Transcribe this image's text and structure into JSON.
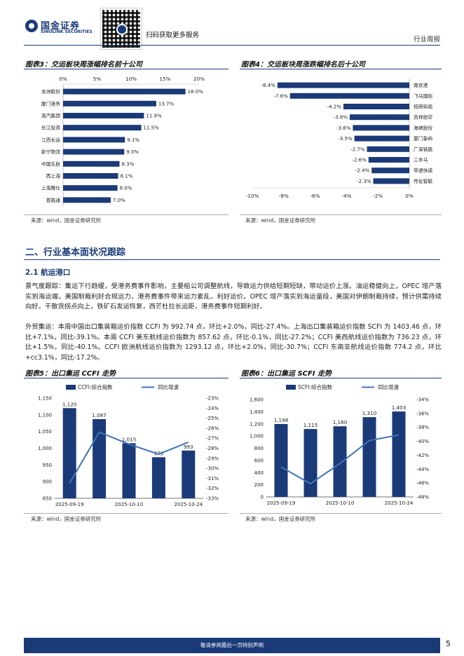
{
  "header": {
    "brand_cn": "国金证券",
    "brand_en": "SINOLINK SECURITIES",
    "qr_caption": "扫码获取更多服务",
    "doc_type": "行业周报"
  },
  "fig3": {
    "title": "图表3：交运板块周涨幅排名前十公司",
    "source": "来源：wind，国金证券研究所"
  },
  "fig4": {
    "title": "图表4：交运板块周涨跌幅排名后十公司",
    "source": "来源：wind，国金证券研究所"
  },
  "section": {
    "title": "二、行业基本面状况跟踪",
    "subtitle": "2.1 航运港口",
    "p1": "景气度跟踪：集运下行趋缓，受港务费事件影响，主要船公司调整航线，导致运力供给短期短缺，带动运价上涨。油运稳健向上，OPEC 增产落实到海运端，美国制裁利好合规运力，港务费事件带来运力紊乱，利好运价。OPEC 增产落实到海运量段，美国对伊朗制裁持续，预计供需持续向好。干散货拐点向上，铁矿石发运恢复，西芒杜拉长运距，港务费事件短期利好。",
    "p2": "外贸集运：本周中国出口集装箱运价指数 CCFI 为 992.74 点，环比+2.0%，同比-27.4%。上海出口集装箱运价指数 SCFI 为 1403.46 点，环比+7.1%，同比-39.1%。本周 CCFI 美东航线运价指数为 857.62 点，环比-0.1%，同比-27.2%；CCFI 美西航线运价指数为 736.23 点，环比+1.5%，同比-40.1%。CCFI 欧洲航线运价指数为 1293.12 点，环比+2.0%，同比-30.7%；CCFI 东南亚航线运价指数 774.2 点，环比+cc3.1%，同比-17.2%。"
  },
  "fig5": {
    "title": "图表5：出口集运 CCFI 走势",
    "source": "来源：wind，国金证券研究所"
  },
  "fig6": {
    "title": "图表6：出口集运 SCFI 走势",
    "source": "来源：wind，国金证券研究所"
  },
  "footer": {
    "disclaimer": "敬请参阅最后一页特别声明",
    "page": "5"
  },
  "colors": {
    "navy": "#1b3a78",
    "line_blue": "#3f74b5"
  },
  "chart_data": [
    {
      "id": "fig3",
      "type": "bar",
      "orientation": "horizontal",
      "categories": [
        "龙洲股份",
        "厦门港务",
        "海汽集团",
        "长江投资",
        "江西长运",
        "新宁物流",
        "中国东航",
        "西上海",
        "上海雅仕",
        "普路通"
      ],
      "values": [
        18.0,
        13.7,
        11.9,
        11.5,
        9.1,
        9.0,
        8.3,
        8.1,
        8.0,
        7.0
      ],
      "data_labels": [
        "18.0%",
        "13.7%",
        "11.9%",
        "11.5%",
        "9.1%",
        "9.0%",
        "8.3%",
        "8.1%",
        "8.0%",
        "7.0%"
      ],
      "x_ticks": [
        "0%",
        "5%",
        "10%",
        "15%",
        "20%"
      ],
      "xlim": [
        0,
        20
      ],
      "axis_position": "top",
      "color": "#1b3a78"
    },
    {
      "id": "fig4",
      "type": "bar",
      "orientation": "horizontal",
      "categories": [
        "南京港",
        "飞马国际",
        "招商轮船",
        "吉祥航空",
        "海峡股份",
        "厦门象屿",
        "广深铁路",
        "三羊马",
        "申通快递",
        "传化智联"
      ],
      "values": [
        -8.4,
        -7.6,
        -4.2,
        -3.8,
        -3.6,
        -3.5,
        -2.7,
        -2.6,
        -2.4,
        -2.3
      ],
      "data_labels": [
        "-8.4%",
        "-7.6%",
        "-4.2%",
        "-3.8%",
        "-3.6%",
        "-3.5%",
        "-2.7%",
        "-2.6%",
        "-2.4%",
        "-2.3%"
      ],
      "x_ticks": [
        "-10%",
        "-8%",
        "-6%",
        "-4%",
        "-2%",
        "0%"
      ],
      "xlim": [
        -10,
        0
      ],
      "axis_position": "bottom",
      "label_side": "right",
      "color": "#1b3a78"
    },
    {
      "id": "fig5",
      "type": "bar",
      "legend": [
        "CCFI:综合指数",
        "同比增速"
      ],
      "legend_position": "top",
      "categories": [
        "2025-09-19",
        "2025-09-26",
        "2025-10-10",
        "2025-10-17",
        "2025-10-24"
      ],
      "x_ticks": [
        "2025-09-19",
        "2025-10-10",
        "2025-10-24"
      ],
      "series": [
        {
          "name": "CCFI:综合指数",
          "type": "bar",
          "values": [
            1120,
            1087,
            1015,
            973,
            993
          ],
          "data_labels": [
            "1,120",
            "1,087",
            "1,015",
            "973",
            "993"
          ]
        },
        {
          "name": "同比增速",
          "type": "line",
          "axis": "right",
          "values": [
            -31.5,
            -26.4,
            -27.6,
            -28.6,
            -27.4
          ]
        }
      ],
      "ylim": [
        850,
        1150
      ],
      "y_ticks": [
        "850",
        "900",
        "950",
        "1,000",
        "1,050",
        "1,100",
        "1,150"
      ],
      "y2lim": [
        -33,
        -23
      ],
      "y2_ticks": [
        "-23%",
        "-24%",
        "-25%",
        "-26%",
        "-27%",
        "-28%",
        "-29%",
        "-30%",
        "-31%",
        "-32%",
        "-33%"
      ]
    },
    {
      "id": "fig6",
      "type": "bar",
      "legend": [
        "SCFI:综合指数",
        "同比增速"
      ],
      "legend_position": "top",
      "categories": [
        "2025-09-19",
        "2025-09-26",
        "2025-10-10",
        "2025-10-17",
        "2025-10-24"
      ],
      "x_ticks": [
        "2025-09-19",
        "2025-10-10",
        "2025-10-24"
      ],
      "series": [
        {
          "name": "SCFI:综合指数",
          "type": "bar",
          "values": [
            1198,
            1115,
            1160,
            1310,
            1403
          ],
          "data_labels": [
            "1,198",
            "1,115",
            "1,160",
            "1,310",
            "1,403"
          ]
        },
        {
          "name": "同比增速",
          "type": "line",
          "axis": "right",
          "values": [
            -43.7,
            -46.1,
            -43.2,
            -39.9,
            -39.1
          ]
        }
      ],
      "ylim": [
        0,
        1600
      ],
      "y_ticks": [
        "0",
        "200",
        "400",
        "600",
        "800",
        "1,000",
        "1,200",
        "1,400",
        "1,600"
      ],
      "y2lim": [
        -48,
        -34
      ],
      "y2_ticks": [
        "-34%",
        "-36%",
        "-38%",
        "-40%",
        "-42%",
        "-44%",
        "-46%",
        "-48%"
      ]
    }
  ]
}
